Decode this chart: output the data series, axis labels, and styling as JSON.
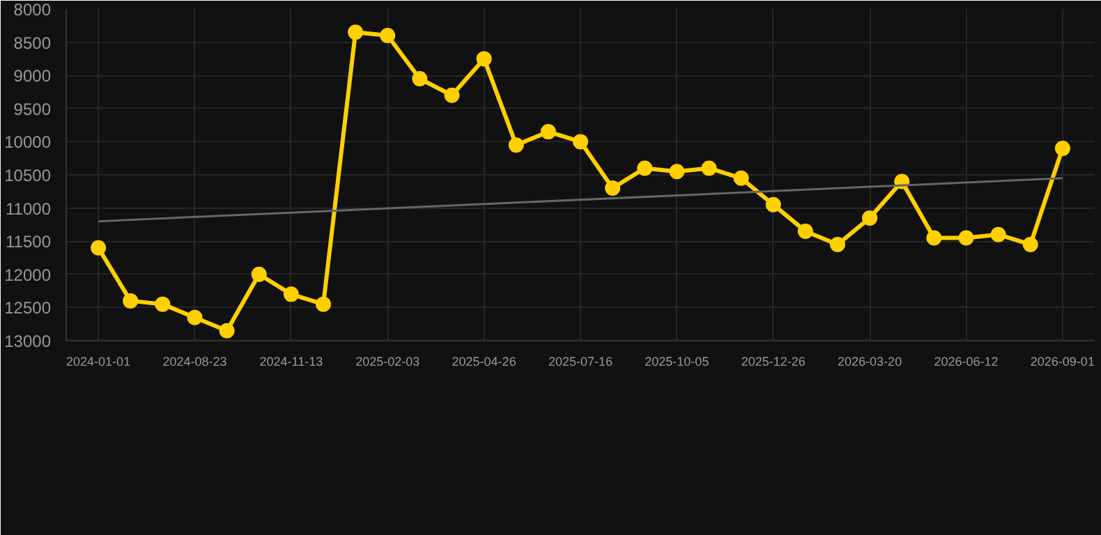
{
  "chart_data": {
    "type": "line",
    "categories": [
      "2024-01-01",
      null,
      null,
      "2024-08-23",
      null,
      null,
      "2024-11-13",
      null,
      null,
      "2025-02-03",
      null,
      null,
      "2025-04-26",
      null,
      null,
      "2025-07-16",
      null,
      null,
      "2025-10-05",
      null,
      null,
      "2025-12-26",
      null,
      null,
      "2026-03-20",
      null,
      null,
      "2026-06-12",
      null,
      null,
      "2026-09-01"
    ],
    "series": [
      {
        "color": "#ffd000",
        "marker": "circle",
        "values": [
          11600,
          12400,
          12450,
          12650,
          12850,
          12000,
          12300,
          12450,
          8350,
          8400,
          9050,
          9300,
          8750,
          10050,
          9850,
          10000,
          10700,
          10400,
          10450,
          10400,
          10550,
          10950,
          11350,
          11550,
          11150,
          10600,
          11450,
          11450,
          11400,
          11550,
          10100
        ]
      },
      {
        "color": "#666666",
        "marker": "none",
        "values": [
          11200,
          null,
          null,
          null,
          null,
          null,
          null,
          null,
          null,
          null,
          null,
          null,
          null,
          null,
          null,
          null,
          null,
          null,
          null,
          null,
          null,
          null,
          null,
          null,
          null,
          null,
          null,
          null,
          null,
          null,
          10550
        ]
      }
    ],
    "ylim": [
      13000,
      8000
    ],
    "yticks": [
      8000,
      8500,
      9000,
      9500,
      10000,
      10500,
      11000,
      11500,
      12000,
      12500,
      13000
    ],
    "grid": true
  }
}
